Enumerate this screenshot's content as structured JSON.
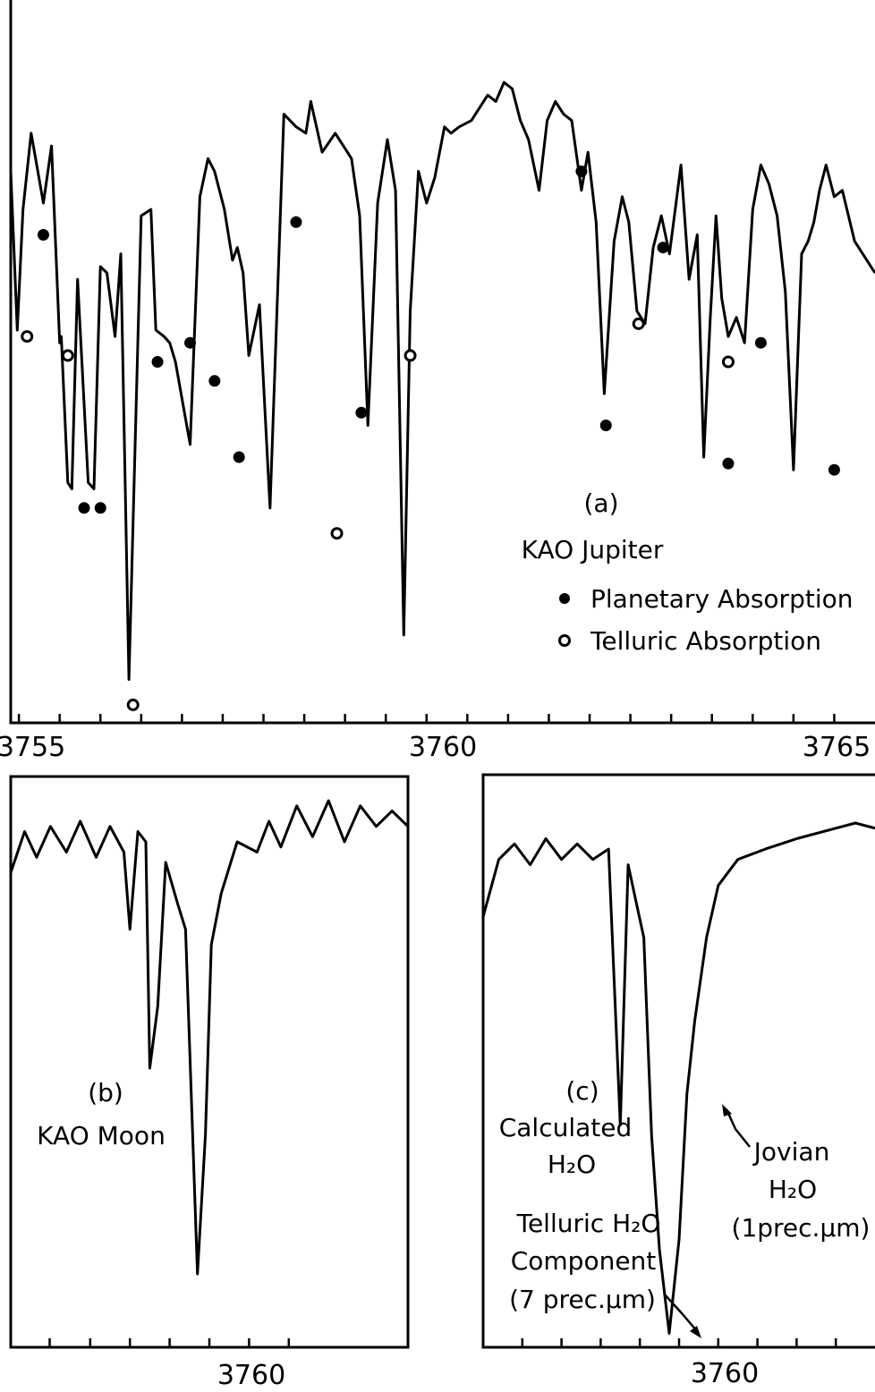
{
  "chart_data": [
    {
      "type": "line",
      "panel_label": "(a)",
      "title": "KAO Jupiter",
      "legend": [
        "Planetary Absorption",
        "Telluric Absorption"
      ],
      "x_tick_labels": [
        "3755",
        "3760",
        "3765"
      ],
      "xlim": [
        3754.9,
        3765.5
      ],
      "ylim": [
        0,
        1
      ],
      "series": [
        {
          "x": [
            3754.9,
            3754.98,
            3755.05,
            3755.15,
            3755.3,
            3755.4,
            3755.5,
            3755.52,
            3755.6,
            3755.65,
            3755.72,
            3755.85,
            3755.92,
            3756.0,
            3756.08,
            3756.18,
            3756.25,
            3756.35,
            3756.5,
            3756.62,
            3756.68,
            3756.78,
            3756.85,
            3756.92,
            3757.1,
            3757.22,
            3757.32,
            3757.4,
            3757.52,
            3757.62,
            3757.68,
            3757.75,
            3757.82,
            3757.95,
            3758.08,
            3758.25,
            3758.4,
            3758.52,
            3758.58,
            3758.72,
            3758.88,
            3758.98,
            3759.08,
            3759.18,
            3759.28,
            3759.4,
            3759.52,
            3759.62,
            3759.72,
            3759.8,
            3759.9,
            3760.0,
            3760.1,
            3760.22,
            3760.3,
            3760.4,
            3760.55,
            3760.75,
            3760.85,
            3760.95,
            3761.05,
            3761.15,
            3761.25,
            3761.38,
            3761.48,
            3761.58,
            3761.68,
            3761.78,
            3761.9,
            3761.98,
            3762.08,
            3762.18,
            3762.3,
            3762.4,
            3762.48,
            3762.58,
            3762.68,
            3762.78,
            3762.88,
            3762.98,
            3763.12,
            3763.22,
            3763.32,
            3763.4,
            3763.48,
            3763.55,
            3763.62,
            3763.7,
            3763.8,
            3763.9,
            3764.0,
            3764.1,
            3764.2,
            3764.3,
            3764.4,
            3764.5,
            3764.6,
            3764.68,
            3764.75,
            3764.82,
            3764.9,
            3765.0,
            3765.1,
            3765.25,
            3765.5
          ],
          "y": [
            0.85,
            0.6,
            0.79,
            0.91,
            0.8,
            0.89,
            0.58,
            0.59,
            0.36,
            0.35,
            0.68,
            0.36,
            0.35,
            0.7,
            0.69,
            0.59,
            0.72,
            0.05,
            0.78,
            0.79,
            0.6,
            0.59,
            0.58,
            0.55,
            0.42,
            0.81,
            0.87,
            0.85,
            0.79,
            0.71,
            0.73,
            0.69,
            0.56,
            0.64,
            0.32,
            0.94,
            0.92,
            0.91,
            0.96,
            0.88,
            0.91,
            0.89,
            0.87,
            0.78,
            0.45,
            0.8,
            0.9,
            0.82,
            0.12,
            0.63,
            0.85,
            0.8,
            0.84,
            0.92,
            0.91,
            0.92,
            0.93,
            0.97,
            0.96,
            0.99,
            0.98,
            0.93,
            0.9,
            0.82,
            0.93,
            0.96,
            0.94,
            0.93,
            0.82,
            0.88,
            0.77,
            0.5,
            0.74,
            0.81,
            0.77,
            0.63,
            0.61,
            0.73,
            0.78,
            0.72,
            0.86,
            0.68,
            0.75,
            0.4,
            0.62,
            0.78,
            0.65,
            0.59,
            0.62,
            0.58,
            0.79,
            0.86,
            0.83,
            0.78,
            0.66,
            0.38,
            0.72,
            0.74,
            0.77,
            0.82,
            0.86,
            0.81,
            0.82,
            0.74,
            0.69
          ]
        }
      ],
      "planetary_markers": [
        {
          "x": 3755.3,
          "y": 0.75
        },
        {
          "x": 3755.8,
          "y": 0.32
        },
        {
          "x": 3756.0,
          "y": 0.32
        },
        {
          "x": 3756.7,
          "y": 0.55
        },
        {
          "x": 3757.1,
          "y": 0.58
        },
        {
          "x": 3757.4,
          "y": 0.52
        },
        {
          "x": 3757.7,
          "y": 0.4
        },
        {
          "x": 3758.4,
          "y": 0.77
        },
        {
          "x": 3759.2,
          "y": 0.47
        },
        {
          "x": 3761.9,
          "y": 0.85
        },
        {
          "x": 3762.2,
          "y": 0.45
        },
        {
          "x": 3762.9,
          "y": 0.73
        },
        {
          "x": 3763.7,
          "y": 0.39
        },
        {
          "x": 3764.1,
          "y": 0.58
        },
        {
          "x": 3765.0,
          "y": 0.38
        }
      ],
      "telluric_markers": [
        {
          "x": 3755.1,
          "y": 0.59
        },
        {
          "x": 3755.6,
          "y": 0.56
        },
        {
          "x": 3756.4,
          "y": 0.01
        },
        {
          "x": 3758.9,
          "y": 0.28
        },
        {
          "x": 3759.8,
          "y": 0.56
        },
        {
          "x": 3762.6,
          "y": 0.61
        },
        {
          "x": 3763.7,
          "y": 0.55
        }
      ]
    },
    {
      "type": "line",
      "panel_label": "(b)",
      "title": "KAO Moon",
      "x_tick_labels": [
        "3760"
      ],
      "xlim": [
        3755.0,
        3765.0
      ],
      "ylim": [
        0,
        1
      ],
      "series": [
        {
          "x": [
            3755.0,
            3755.35,
            3755.65,
            3756.0,
            3756.4,
            3756.75,
            3757.15,
            3757.5,
            3757.85,
            3758.0,
            3758.2,
            3758.4,
            3758.5,
            3758.7,
            3758.9,
            3759.2,
            3759.4,
            3759.7,
            3759.9,
            3760.05,
            3760.3,
            3760.7,
            3761.2,
            3761.5,
            3761.8,
            3762.2,
            3762.6,
            3763.0,
            3763.4,
            3763.8,
            3764.2,
            3764.6,
            3765.0
          ],
          "y": [
            0.86,
            0.94,
            0.89,
            0.95,
            0.9,
            0.96,
            0.89,
            0.95,
            0.9,
            0.75,
            0.94,
            0.92,
            0.48,
            0.6,
            0.88,
            0.8,
            0.75,
            0.08,
            0.35,
            0.72,
            0.82,
            0.92,
            0.9,
            0.96,
            0.91,
            0.99,
            0.93,
            1.0,
            0.92,
            0.99,
            0.95,
            0.98,
            0.95
          ]
        }
      ]
    },
    {
      "type": "line",
      "panel_label": "(c)",
      "title": "Calculated H₂O",
      "annotations": [
        "Jovian H₂O (1prec.μm)",
        "Telluric H₂O Component (7 prec.μm)"
      ],
      "x_tick_labels": [
        "3760"
      ],
      "xlim": [
        3755.0,
        3765.0
      ],
      "ylim": [
        0,
        1
      ],
      "series": [
        {
          "x": [
            3755.0,
            3755.4,
            3755.8,
            3756.2,
            3756.6,
            3757.0,
            3757.4,
            3757.8,
            3758.2,
            3758.5,
            3758.7,
            3758.9,
            3759.1,
            3759.3,
            3759.5,
            3759.75,
            3760.0,
            3760.2,
            3760.4,
            3760.7,
            3761.0,
            3761.5,
            3762.2,
            3763.0,
            3764.0,
            3764.5,
            3765.0
          ],
          "y": [
            0.82,
            0.93,
            0.96,
            0.92,
            0.97,
            0.93,
            0.96,
            0.93,
            0.95,
            0.42,
            0.92,
            0.85,
            0.78,
            0.4,
            0.18,
            0.02,
            0.2,
            0.48,
            0.62,
            0.78,
            0.88,
            0.93,
            0.95,
            0.97,
            0.99,
            1.0,
            0.99
          ]
        }
      ]
    }
  ],
  "panel_a": {
    "label": "(a)",
    "title": "KAO Jupiter",
    "legend_planetary": "Planetary Absorption",
    "legend_telluric": "Telluric Absorption",
    "ticks": [
      "3755",
      "3760",
      "3765"
    ]
  },
  "panel_b": {
    "label": "(b)",
    "title": "KAO Moon",
    "tick": "3760"
  },
  "panel_c": {
    "label": "(c)",
    "title_line1": "Calculated",
    "title_line2": "H₂O",
    "jovian_line1": "Jovian",
    "jovian_line2": "H₂O",
    "jovian_line3": "(1prec.μm)",
    "telluric_line1": "Telluric H₂O",
    "telluric_line2": "Component",
    "telluric_line3": "(7 prec.μm)",
    "tick": "3760"
  }
}
